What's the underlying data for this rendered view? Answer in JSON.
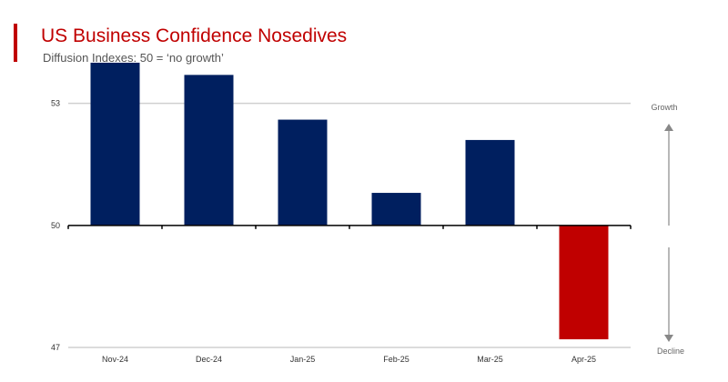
{
  "header": {
    "title": "US Business Confidence Nosedives",
    "subtitle": "Diffusion Indexes: 50 = ‘no growth’"
  },
  "annotations": {
    "up_label": "Growth",
    "down_label": "Decline"
  },
  "colors": {
    "accent": "#c00000",
    "bar_positive": "#001f5f",
    "bar_negative": "#c00000",
    "gridline": "#d0d0d0",
    "axis": "#000000",
    "tick_text": "#333333",
    "arrow": "#888888"
  },
  "chart_data": {
    "type": "bar",
    "title": "US Business Confidence Nosedives",
    "subtitle": "Diffusion Indexes: 50 = ‘no growth’",
    "categories": [
      "Nov-24",
      "Dec-24",
      "Jan-25",
      "Feb-25",
      "Mar-25",
      "Apr-25"
    ],
    "values": [
      54,
      53.7,
      52.6,
      50.8,
      52.1,
      47.2
    ],
    "baseline": 50,
    "ylim": [
      47,
      54.2
    ],
    "yticks": [
      47,
      50,
      53
    ],
    "grid": true,
    "legend": "none",
    "xlabel": "",
    "ylabel": ""
  }
}
